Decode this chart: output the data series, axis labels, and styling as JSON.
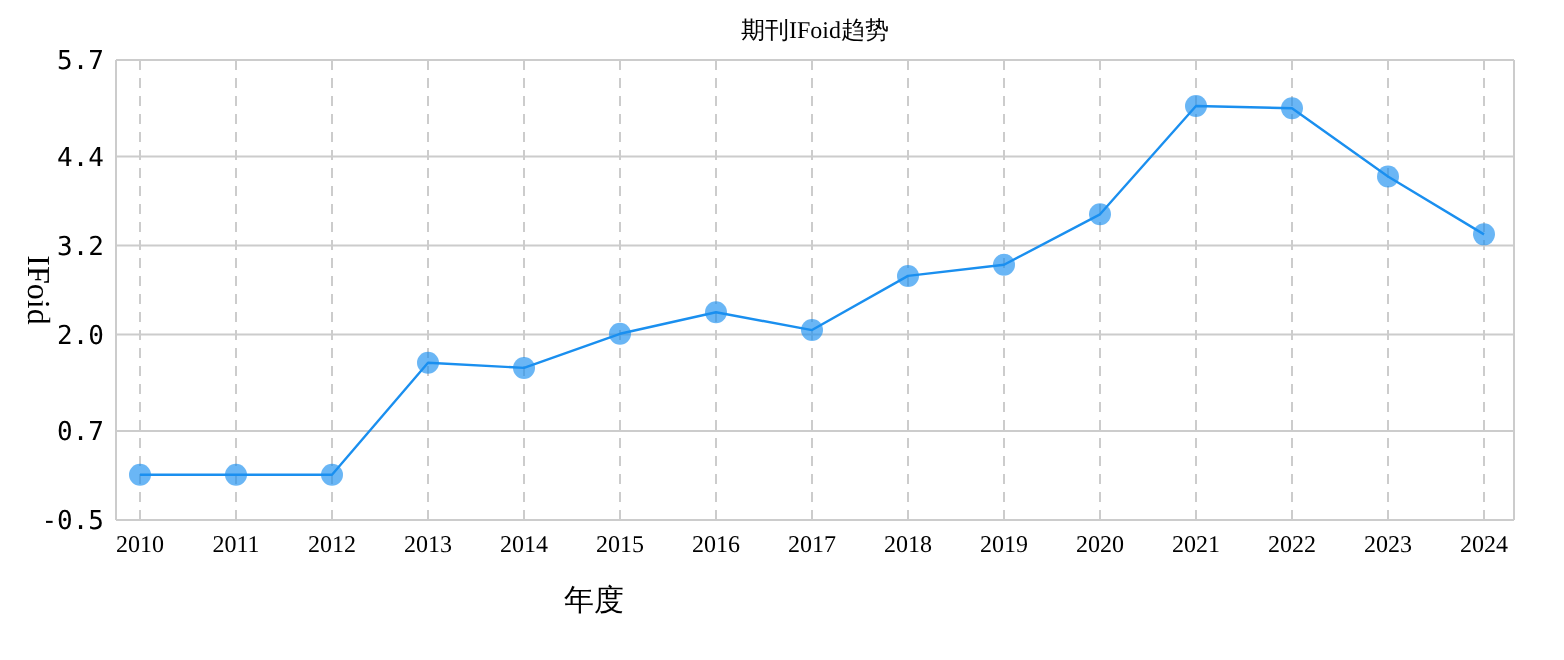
{
  "chart_data": {
    "type": "line",
    "title": "期刊IFoid趋势",
    "xlabel": "年度",
    "ylabel": "IFoid",
    "categories": [
      "2010",
      "2011",
      "2012",
      "2013",
      "2014",
      "2015",
      "2016",
      "2017",
      "2018",
      "2019",
      "2020",
      "2021",
      "2022",
      "2023",
      "2024"
    ],
    "series": [
      {
        "color": "#1a8fef",
        "values": [
          0.11,
          0.11,
          0.11,
          1.62,
          1.55,
          2.01,
          2.3,
          2.06,
          2.79,
          2.94,
          3.62,
          5.08,
          5.05,
          4.13,
          3.35
        ]
      }
    ],
    "ylim": [
      -0.5,
      5.7
    ],
    "yticks": [
      -0.5,
      0.7,
      {
        "value": 2.0,
        "label": "2.0"
      },
      3.2,
      4.4,
      5.7
    ],
    "grid": true,
    "marker": "circle",
    "line_style": "solid"
  }
}
